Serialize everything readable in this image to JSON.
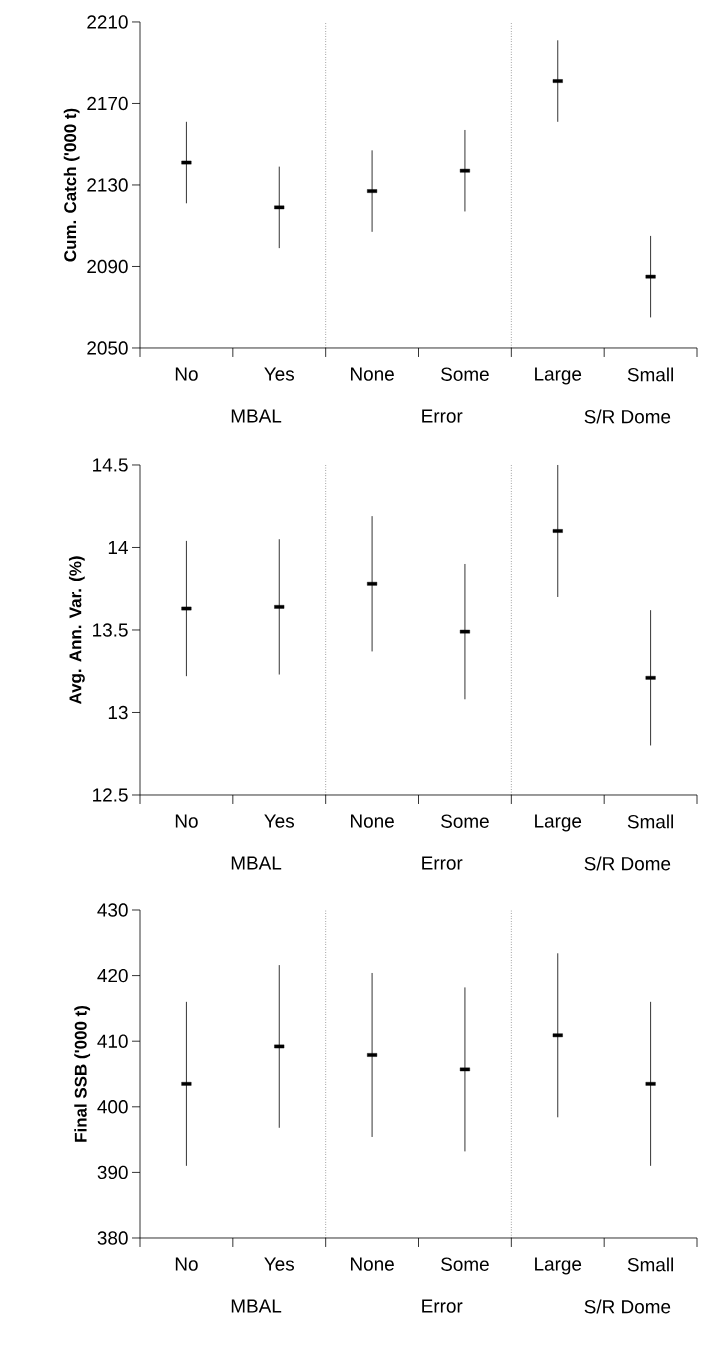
{
  "chart_data": [
    {
      "type": "scatter",
      "ylabel": "Cum. Catch ('000 t)",
      "categories": [
        "No",
        "Yes",
        "None",
        "Some",
        "Large",
        "Small"
      ],
      "color": "#000000",
      "values": [
        2141,
        2119,
        2127,
        2137,
        2181,
        2085
      ],
      "errors": [
        20,
        20,
        20,
        20,
        20,
        20
      ],
      "ylim": [
        2050,
        2210
      ],
      "yticks": [
        2050,
        2090,
        2130,
        2170,
        2210
      ],
      "annotations": [
        "MBAL",
        "Error",
        "S/R Dome"
      ]
    },
    {
      "type": "scatter",
      "ylabel": "Avg. Ann. Var. (%)",
      "categories": [
        "No",
        "Yes",
        "None",
        "Some",
        "Large",
        "Small"
      ],
      "color": "#000000",
      "values": [
        13.63,
        13.64,
        13.78,
        13.49,
        14.1,
        13.21
      ],
      "errors": [
        0.41,
        0.41,
        0.41,
        0.41,
        0.4,
        0.41
      ],
      "ylim": [
        12.5,
        14.5
      ],
      "yticks": [
        12.5,
        13,
        13.5,
        14,
        14.5
      ],
      "annotations": [
        "MBAL",
        "Error",
        "S/R Dome"
      ]
    },
    {
      "type": "scatter",
      "ylabel": "Final SSB ('000 t)",
      "categories": [
        "No",
        "Yes",
        "None",
        "Some",
        "Large",
        "Small"
      ],
      "color": "#000000",
      "values": [
        403.5,
        409.2,
        407.9,
        405.7,
        410.9,
        403.5
      ],
      "errors": [
        12.5,
        12.4,
        12.5,
        12.5,
        12.5,
        12.5
      ],
      "ylim": [
        380,
        430
      ],
      "yticks": [
        380,
        390,
        400,
        410,
        420,
        430
      ],
      "annotations": [
        "MBAL",
        "Error",
        "S/R Dome"
      ]
    }
  ]
}
